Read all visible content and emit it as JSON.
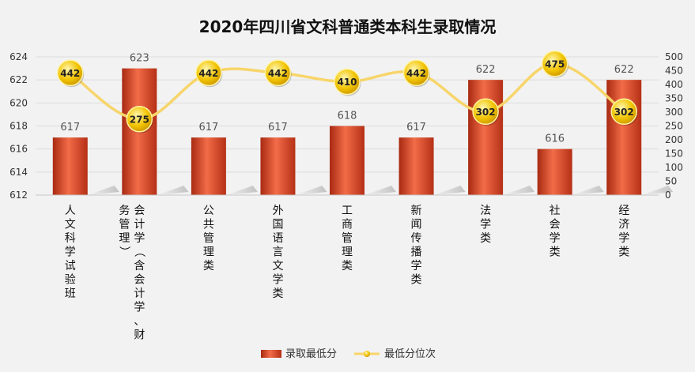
{
  "chart_data": {
    "type": "bar",
    "title": "2020年四川省文科普通类本科生录取情况",
    "categories": [
      "人文科学试验班",
      "会计学（含会计学、财务管理）",
      "公共管理类",
      "外国语言文学类",
      "工商管理类",
      "新闻传播学类",
      "法学类",
      "社会学类",
      "经济学类"
    ],
    "category_lines": [
      [
        "人文科学试验班"
      ],
      [
        "会计学（含会计学、财",
        "务管理）"
      ],
      [
        "公共管理类"
      ],
      [
        "外国语言文学类"
      ],
      [
        "工商管理类"
      ],
      [
        "新闻传播学类"
      ],
      [
        "法学类"
      ],
      [
        "社会学类"
      ],
      [
        "经济学类"
      ]
    ],
    "series": [
      {
        "name": "录取最低分",
        "type": "bar",
        "axis": "left",
        "values": [
          617,
          623,
          617,
          617,
          618,
          617,
          622,
          616,
          622
        ]
      },
      {
        "name": "最低分位次",
        "type": "line",
        "axis": "right",
        "values": [
          442,
          275,
          442,
          442,
          410,
          442,
          302,
          475,
          302
        ]
      }
    ],
    "y_left": {
      "min": 612,
      "max": 624,
      "ticks": [
        "612",
        "614",
        "616",
        "618",
        "620",
        "622",
        "624"
      ]
    },
    "y_right": {
      "min": 0,
      "max": 500,
      "ticks": [
        "0",
        "50",
        "100",
        "150",
        "200",
        "250",
        "300",
        "350",
        "400",
        "450",
        "500"
      ]
    },
    "grid": true,
    "legend_position": "bottom",
    "colors": {
      "bar": "#c9391b",
      "bar_light": "#f26c48",
      "line": "#f7d56a",
      "marker": "#e6b800"
    }
  }
}
